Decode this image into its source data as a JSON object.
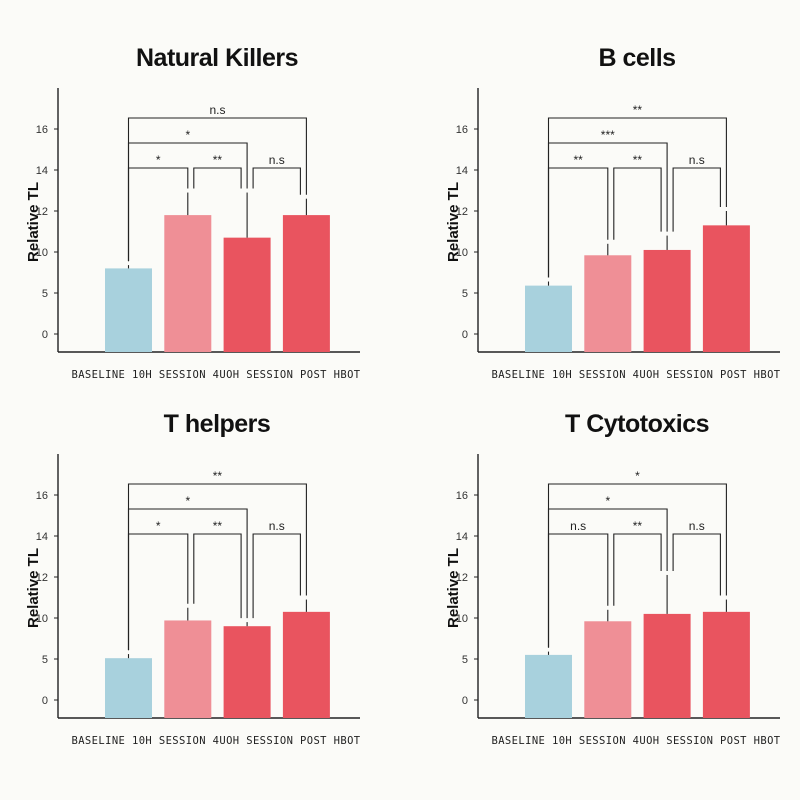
{
  "colors": {
    "baseline": "#a8d1dd",
    "session10": "#ef8f96",
    "session40": "#e9545f",
    "posthbot": "#e9545f",
    "axis": "#222222"
  },
  "chart_data": [
    {
      "type": "bar",
      "title": "Natural Killers",
      "ylabel": "Relative TL",
      "categories_label": "BASELINE 10H SESSION 4UOH SESSION POST HBOT",
      "y_tick_labels": [
        "0",
        "5",
        "10",
        "12",
        "14",
        "16"
      ],
      "values": [
        8.0,
        11.8,
        10.7,
        11.8
      ],
      "errors": [
        0.4,
        1.1,
        2.2,
        0.8
      ],
      "comparisons": [
        {
          "from": 0,
          "to": 3,
          "label": "n.s"
        },
        {
          "from": 0,
          "to": 2,
          "label": "*"
        },
        {
          "from": 0,
          "to": 1,
          "label": "*"
        },
        {
          "from": 1,
          "to": 2,
          "label": "**"
        },
        {
          "from": 2,
          "to": 3,
          "label": "n.s"
        }
      ]
    },
    {
      "type": "bar",
      "title": "B cells",
      "ylabel": "Relative TL",
      "categories_label": "BASELINE 10H SESSION 4UOH SESSION POST HBOT",
      "y_tick_labels": [
        "0",
        "5",
        "10",
        "12",
        "14",
        "16"
      ],
      "values": [
        5.9,
        9.6,
        10.1,
        11.3
      ],
      "errors": [
        0.5,
        0.8,
        0.7,
        0.7
      ],
      "comparisons": [
        {
          "from": 0,
          "to": 3,
          "label": "**"
        },
        {
          "from": 0,
          "to": 2,
          "label": "***"
        },
        {
          "from": 0,
          "to": 1,
          "label": "**"
        },
        {
          "from": 1,
          "to": 2,
          "label": "**"
        },
        {
          "from": 2,
          "to": 3,
          "label": "n.s"
        }
      ]
    },
    {
      "type": "bar",
      "title": "T helpers",
      "ylabel": "Relative TL",
      "categories_label": "BASELINE 10H SESSION 4UOH SESSION POST HBOT",
      "y_tick_labels": [
        "0",
        "5",
        "10",
        "12",
        "14",
        "16"
      ],
      "values": [
        5.1,
        9.7,
        9.0,
        10.3
      ],
      "errors": [
        0.5,
        0.8,
        0.5,
        0.6
      ],
      "comparisons": [
        {
          "from": 0,
          "to": 3,
          "label": "**"
        },
        {
          "from": 0,
          "to": 2,
          "label": "*"
        },
        {
          "from": 0,
          "to": 1,
          "label": "*"
        },
        {
          "from": 1,
          "to": 2,
          "label": "**"
        },
        {
          "from": 2,
          "to": 3,
          "label": "n.s"
        }
      ]
    },
    {
      "type": "bar",
      "title": "T Cytotoxics",
      "ylabel": "Relative TL",
      "categories_label": "BASELINE 10H SESSION 4UOH SESSION POST HBOT",
      "y_tick_labels": [
        "0",
        "5",
        "10",
        "12",
        "14",
        "16"
      ],
      "values": [
        5.5,
        9.6,
        10.2,
        10.3
      ],
      "errors": [
        0.4,
        0.8,
        1.9,
        0.6
      ],
      "comparisons": [
        {
          "from": 0,
          "to": 3,
          "label": "*"
        },
        {
          "from": 0,
          "to": 2,
          "label": "*"
        },
        {
          "from": 0,
          "to": 1,
          "label": "n.s"
        },
        {
          "from": 1,
          "to": 2,
          "label": "**"
        },
        {
          "from": 2,
          "to": 3,
          "label": "n.s"
        }
      ]
    }
  ]
}
